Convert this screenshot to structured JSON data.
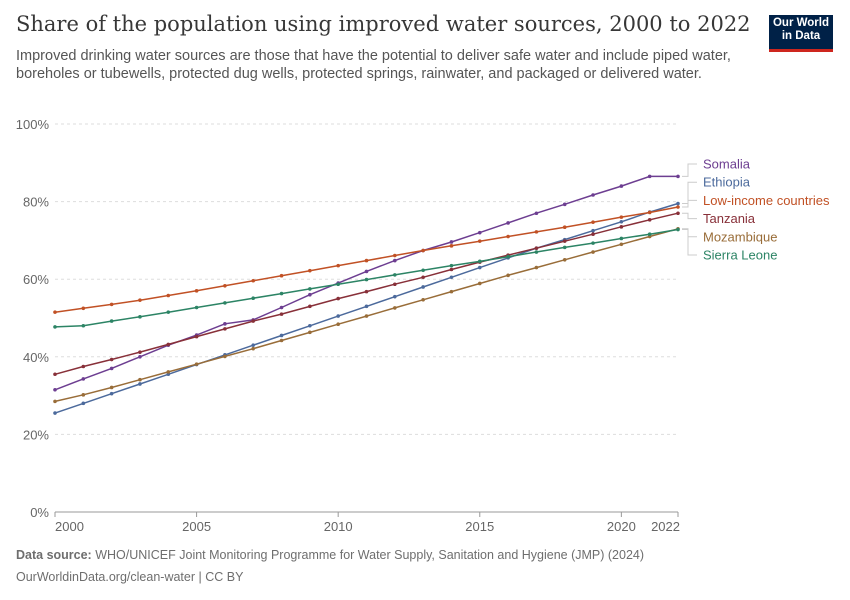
{
  "logo": {
    "line1": "Our World",
    "line2": "in Data"
  },
  "chart_data": {
    "type": "line",
    "title": "Share of the population using improved water sources, 2000 to 2022",
    "subtitle": "Improved drinking water sources are those that have the potential to deliver safe water and include piped water, boreholes or tubewells, protected dug wells, protected springs, rainwater, and packaged or delivered water.",
    "xlabel": "",
    "ylabel": "",
    "xlim": [
      2000,
      2022
    ],
    "ylim": [
      0,
      100
    ],
    "y_ticks": [
      "0%",
      "20%",
      "40%",
      "60%",
      "80%",
      "100%"
    ],
    "x_ticks": [
      "2000",
      "2005",
      "2010",
      "2015",
      "2020",
      "2022"
    ],
    "grid": "horizontal dashed",
    "legend_placement": "right",
    "x": [
      2000,
      2001,
      2002,
      2003,
      2004,
      2005,
      2006,
      2007,
      2008,
      2009,
      2010,
      2011,
      2012,
      2013,
      2014,
      2015,
      2016,
      2017,
      2018,
      2019,
      2020,
      2021,
      2022
    ],
    "series": [
      {
        "name": "Somalia",
        "color": "#6d3e91",
        "values": [
          31.5,
          34.3,
          37.0,
          40.0,
          43.0,
          45.6,
          48.5,
          49.5,
          52.7,
          56.0,
          59.0,
          62.0,
          64.8,
          67.4,
          69.6,
          72.0,
          74.5,
          77.0,
          79.3,
          81.7,
          84.0,
          86.5,
          86.5
        ]
      },
      {
        "name": "Ethiopia",
        "color": "#4c6a9c",
        "values": [
          25.5,
          28.0,
          30.5,
          33.0,
          35.5,
          38.0,
          40.5,
          43.0,
          45.5,
          48.0,
          50.5,
          53.0,
          55.5,
          58.0,
          60.5,
          63.0,
          65.5,
          68.0,
          70.2,
          72.5,
          74.8,
          77.3,
          79.5
        ]
      },
      {
        "name": "Low-income countries",
        "color": "#c15125",
        "values": [
          51.5,
          52.5,
          53.5,
          54.6,
          55.8,
          57.0,
          58.3,
          59.6,
          60.9,
          62.2,
          63.5,
          64.8,
          66.1,
          67.4,
          68.6,
          69.8,
          71.0,
          72.2,
          73.4,
          74.7,
          76.0,
          77.2,
          78.6
        ]
      },
      {
        "name": "Tanzania",
        "color": "#883039",
        "values": [
          35.5,
          37.5,
          39.3,
          41.2,
          43.2,
          45.2,
          47.2,
          49.2,
          51.0,
          53.0,
          55.0,
          56.8,
          58.7,
          60.5,
          62.5,
          64.4,
          66.2,
          68.0,
          69.8,
          71.6,
          73.5,
          75.3,
          77.0
        ]
      },
      {
        "name": "Mozambique",
        "color": "#996d39",
        "values": [
          28.5,
          30.2,
          32.1,
          34.1,
          36.1,
          38.1,
          40.1,
          42.1,
          44.2,
          46.3,
          48.4,
          50.5,
          52.6,
          54.7,
          56.8,
          58.9,
          61.0,
          63.0,
          65.0,
          67.0,
          69.0,
          71.0,
          73.0
        ]
      },
      {
        "name": "Sierra Leone",
        "color": "#2c8465",
        "values": [
          47.7,
          48.0,
          49.2,
          50.3,
          51.5,
          52.7,
          53.9,
          55.1,
          56.3,
          57.5,
          58.7,
          59.9,
          61.1,
          62.3,
          63.5,
          64.6,
          65.8,
          67.0,
          68.2,
          69.3,
          70.5,
          71.6,
          72.8
        ]
      }
    ]
  },
  "footer": {
    "source_label": "Data source:",
    "source_text": "WHO/UNICEF Joint Monitoring Programme for Water Supply, Sanitation and Hygiene (JMP) (2024)",
    "url_line": "OurWorldinData.org/clean-water | CC BY"
  }
}
